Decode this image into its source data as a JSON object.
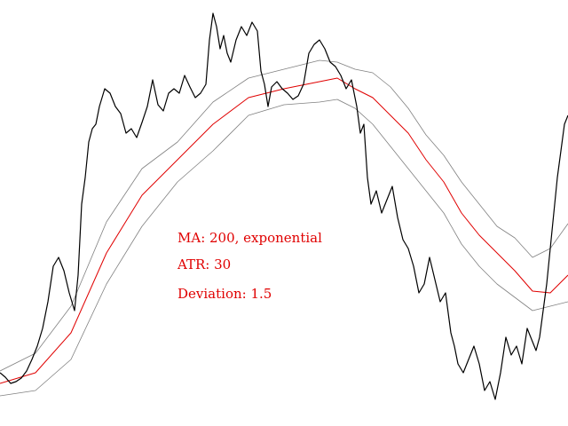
{
  "chart_data": {
    "type": "line",
    "title": "",
    "xlabel": "",
    "ylabel": "",
    "grid": false,
    "legend": "none",
    "colors": {
      "price": "#000000",
      "ma": "#e00000",
      "bands": "#808080",
      "text": "#e00000"
    },
    "annotations": [
      "MA: 200, exponential",
      "ATR: 30",
      "Deviation: 1.5"
    ],
    "series": [
      {
        "key": "price",
        "x": [
          0,
          6,
          12,
          18,
          24,
          30,
          36,
          42,
          48,
          54,
          60,
          66,
          72,
          78,
          84,
          88,
          92,
          96,
          100,
          104,
          108,
          112,
          118,
          124,
          130,
          136,
          142,
          148,
          154,
          160,
          166,
          172,
          178,
          184,
          190,
          196,
          202,
          208,
          214,
          220,
          226,
          232,
          236,
          240,
          244,
          248,
          252,
          256,
          260,
          266,
          272,
          278,
          284,
          290,
          294,
          298,
          302,
          306,
          312,
          318,
          324,
          330,
          336,
          342,
          348,
          354,
          360,
          366,
          372,
          378,
          384,
          390,
          396,
          402,
          406,
          410,
          414,
          418,
          424,
          430,
          436,
          442,
          448,
          454,
          460,
          466,
          472,
          478,
          484,
          490,
          496,
          502,
          508,
          512,
          516,
          522,
          528,
          534,
          540,
          546,
          552,
          558,
          564,
          570,
          576,
          582,
          588,
          594,
          600,
          604,
          608,
          612,
          616,
          620,
          624,
          628,
          632,
          636,
          640
        ],
        "y": [
          420,
          425,
          432,
          430,
          426,
          418,
          405,
          390,
          370,
          340,
          300,
          290,
          305,
          330,
          350,
          310,
          230,
          200,
          160,
          145,
          140,
          120,
          100,
          105,
          120,
          128,
          150,
          145,
          155,
          138,
          120,
          90,
          118,
          125,
          105,
          100,
          105,
          85,
          98,
          110,
          105,
          95,
          45,
          15,
          30,
          55,
          40,
          60,
          70,
          45,
          30,
          40,
          25,
          35,
          80,
          95,
          120,
          98,
          92,
          100,
          105,
          112,
          108,
          95,
          60,
          50,
          45,
          55,
          70,
          75,
          85,
          100,
          90,
          120,
          150,
          140,
          200,
          230,
          215,
          240,
          225,
          210,
          245,
          270,
          280,
          300,
          330,
          320,
          290,
          315,
          340,
          330,
          375,
          390,
          410,
          420,
          405,
          390,
          410,
          440,
          430,
          450,
          420,
          380,
          400,
          390,
          410,
          370,
          385,
          395,
          380,
          350,
          320,
          280,
          240,
          200,
          170,
          140,
          130
        ]
      },
      {
        "key": "ma",
        "x": [
          0,
          40,
          80,
          120,
          160,
          200,
          240,
          280,
          320,
          360,
          380,
          400,
          420,
          440,
          460,
          480,
          500,
          520,
          540,
          560,
          580,
          600,
          620,
          640
        ],
        "y": [
          432,
          420,
          375,
          285,
          220,
          180,
          140,
          110,
          100,
          92,
          88,
          100,
          110,
          130,
          150,
          180,
          205,
          240,
          265,
          285,
          305,
          328,
          330,
          310
        ]
      },
      {
        "key": "upper",
        "x": [
          0,
          40,
          80,
          120,
          160,
          200,
          240,
          280,
          320,
          360,
          380,
          400,
          420,
          440,
          460,
          480,
          500,
          520,
          540,
          560,
          580,
          600,
          620,
          640
        ],
        "y": [
          418,
          398,
          345,
          250,
          190,
          160,
          115,
          88,
          78,
          68,
          70,
          78,
          82,
          98,
          122,
          152,
          175,
          205,
          230,
          255,
          268,
          290,
          280,
          252
        ]
      },
      {
        "key": "lower",
        "x": [
          0,
          40,
          80,
          120,
          160,
          200,
          240,
          280,
          320,
          360,
          380,
          400,
          420,
          440,
          460,
          480,
          500,
          520,
          540,
          560,
          580,
          600,
          620,
          640
        ],
        "y": [
          446,
          440,
          405,
          320,
          255,
          205,
          170,
          130,
          118,
          115,
          112,
          122,
          140,
          165,
          190,
          215,
          240,
          275,
          300,
          320,
          335,
          350,
          345,
          340
        ]
      }
    ]
  }
}
